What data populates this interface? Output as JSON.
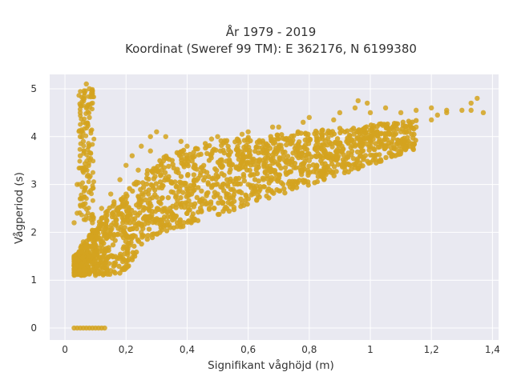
{
  "chart_data": {
    "type": "scatter",
    "title_line1": "År 1979 - 2019",
    "title_line2": "Koordinat (Sweref 99 TM): E 362176, N 6199380",
    "xlabel": "Signifikant våghöjd (m)",
    "ylabel": "Vågperiod (s)",
    "xlim": [
      -0.05,
      1.42
    ],
    "ylim": [
      -0.25,
      5.3
    ],
    "xticks": [
      0,
      0.2,
      0.4,
      0.6,
      0.8,
      1,
      1.2,
      1.4
    ],
    "xtick_labels": [
      "0",
      "0,2",
      "0,4",
      "0,6",
      "0,8",
      "1",
      "1,2",
      "1,4"
    ],
    "yticks": [
      0,
      1,
      2,
      3,
      4,
      5
    ],
    "ytick_labels": [
      "0",
      "1",
      "2",
      "3",
      "4",
      "5"
    ],
    "grid": true,
    "marker_color": "#d4a31f",
    "background_color": "#e9e9f1",
    "series": [
      {
        "points": [
          [
            0.03,
            0
          ],
          [
            0.04,
            0
          ],
          [
            0.05,
            0
          ],
          [
            0.06,
            0
          ],
          [
            0.07,
            0
          ],
          [
            0.08,
            0
          ],
          [
            0.09,
            0
          ],
          [
            0.1,
            0
          ],
          [
            0.11,
            0
          ],
          [
            0.12,
            0
          ],
          [
            0.13,
            0
          ],
          [
            0.05,
            4.5
          ],
          [
            0.06,
            4.8
          ],
          [
            0.07,
            5.1
          ],
          [
            0.08,
            5.0
          ],
          [
            0.09,
            4.9
          ],
          [
            0.06,
            4.3
          ],
          [
            0.05,
            4.0
          ],
          [
            0.07,
            4.6
          ],
          [
            0.06,
            3.9
          ],
          [
            0.05,
            3.6
          ],
          [
            0.06,
            3.3
          ],
          [
            0.04,
            3.0
          ],
          [
            0.05,
            2.7
          ],
          [
            0.04,
            2.4
          ],
          [
            0.03,
            2.2
          ],
          [
            0.08,
            4.4
          ],
          [
            0.09,
            4.7
          ],
          [
            0.03,
            1.5
          ],
          [
            0.05,
            1.3
          ],
          [
            0.08,
            1.2
          ],
          [
            0.1,
            1.1
          ],
          [
            0.12,
            1.15
          ],
          [
            0.15,
            1.2
          ],
          [
            0.2,
            1.25
          ],
          [
            0.06,
            1.8
          ],
          [
            0.09,
            2.2
          ],
          [
            0.12,
            2.5
          ],
          [
            0.15,
            2.8
          ],
          [
            0.18,
            3.1
          ],
          [
            0.2,
            3.4
          ],
          [
            0.22,
            3.6
          ],
          [
            0.25,
            3.8
          ],
          [
            0.28,
            4.0
          ],
          [
            0.3,
            4.1
          ],
          [
            0.33,
            4.0
          ],
          [
            0.18,
            1.5
          ],
          [
            0.2,
            1.7
          ],
          [
            0.22,
            1.9
          ],
          [
            0.25,
            2.0
          ],
          [
            0.3,
            2.2
          ],
          [
            0.35,
            2.4
          ],
          [
            0.4,
            2.6
          ],
          [
            0.45,
            2.7
          ],
          [
            0.5,
            2.8
          ],
          [
            0.55,
            2.9
          ],
          [
            0.6,
            3.0
          ],
          [
            0.65,
            3.1
          ],
          [
            0.7,
            3.2
          ],
          [
            0.75,
            3.35
          ],
          [
            0.8,
            3.5
          ],
          [
            0.85,
            3.6
          ],
          [
            0.9,
            3.7
          ],
          [
            0.95,
            3.8
          ],
          [
            1.0,
            3.9
          ],
          [
            1.05,
            4.0
          ],
          [
            1.1,
            4.1
          ],
          [
            1.15,
            4.2
          ],
          [
            1.2,
            4.35
          ],
          [
            0.4,
            3.8
          ],
          [
            0.5,
            4.0
          ],
          [
            0.6,
            4.1
          ],
          [
            0.7,
            4.2
          ],
          [
            0.8,
            4.4
          ],
          [
            0.9,
            4.5
          ],
          [
            0.95,
            4.6
          ],
          [
            1.0,
            4.5
          ],
          [
            1.05,
            4.6
          ],
          [
            1.1,
            4.5
          ],
          [
            1.15,
            4.55
          ],
          [
            1.2,
            4.6
          ],
          [
            1.25,
            4.55
          ],
          [
            1.3,
            4.55
          ],
          [
            1.33,
            4.7
          ],
          [
            1.35,
            4.8
          ],
          [
            1.37,
            4.5
          ],
          [
            1.33,
            4.55
          ],
          [
            1.25,
            4.5
          ],
          [
            1.22,
            4.45
          ],
          [
            0.99,
            4.7
          ],
          [
            0.96,
            4.75
          ],
          [
            0.88,
            4.35
          ],
          [
            0.78,
            4.3
          ],
          [
            0.68,
            4.2
          ],
          [
            0.58,
            4.05
          ],
          [
            0.48,
            3.95
          ],
          [
            0.38,
            3.9
          ],
          [
            0.28,
            3.7
          ],
          [
            0.24,
            3.3
          ],
          [
            0.2,
            2.8
          ],
          [
            0.16,
            2.2
          ],
          [
            0.14,
            1.9
          ],
          [
            0.1,
            1.6
          ],
          [
            0.08,
            1.4
          ],
          [
            0.12,
            1.3
          ],
          [
            0.16,
            1.35
          ],
          [
            0.19,
            1.45
          ]
        ]
      }
    ]
  }
}
